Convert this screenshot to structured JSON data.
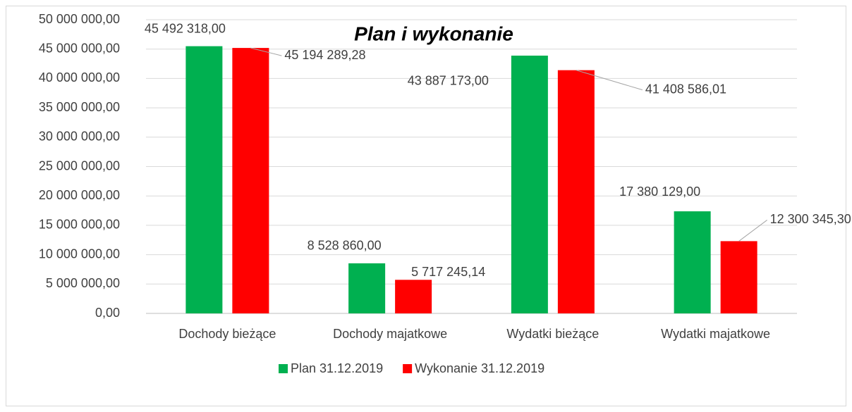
{
  "chart_data": {
    "type": "bar",
    "title": "Plan i wykonanie",
    "categories": [
      "Dochody bieżące",
      "Dochody majatkowe",
      "Wydatki bieżące",
      "Wydatki majatkowe"
    ],
    "series": [
      {
        "name": "Plan 31.12.2019",
        "color": "#00b050",
        "values": [
          45492318.0,
          8528860.0,
          43887173.0,
          17380129.0
        ],
        "value_labels": [
          "45 492 318,00",
          "8 528 860,00",
          "43 887 173,00",
          "17 380 129,00"
        ]
      },
      {
        "name": "Wykonanie 31.12.2019",
        "color": "#ff0000",
        "values": [
          45194289.28,
          5717245.14,
          41408586.01,
          12300345.3
        ],
        "value_labels": [
          "45 194 289,28",
          "5 717 245,14",
          "41 408 586,01",
          "12 300 345,30"
        ]
      }
    ],
    "ylim": [
      0,
      50000000
    ],
    "yticks": [
      {
        "value": 0,
        "label": "0,00"
      },
      {
        "value": 5000000,
        "label": "5 000 000,00"
      },
      {
        "value": 10000000,
        "label": "10 000 000,00"
      },
      {
        "value": 15000000,
        "label": "15 000 000,00"
      },
      {
        "value": 20000000,
        "label": "20 000 000,00"
      },
      {
        "value": 25000000,
        "label": "25 000 000,00"
      },
      {
        "value": 30000000,
        "label": "30 000 000,00"
      },
      {
        "value": 35000000,
        "label": "35 000 000,00"
      },
      {
        "value": 40000000,
        "label": "40 000 000,00"
      },
      {
        "value": 45000000,
        "label": "45 000 000,00"
      },
      {
        "value": 50000000,
        "label": "50 000 000,00"
      }
    ],
    "grid": true,
    "legend": "bottom"
  }
}
